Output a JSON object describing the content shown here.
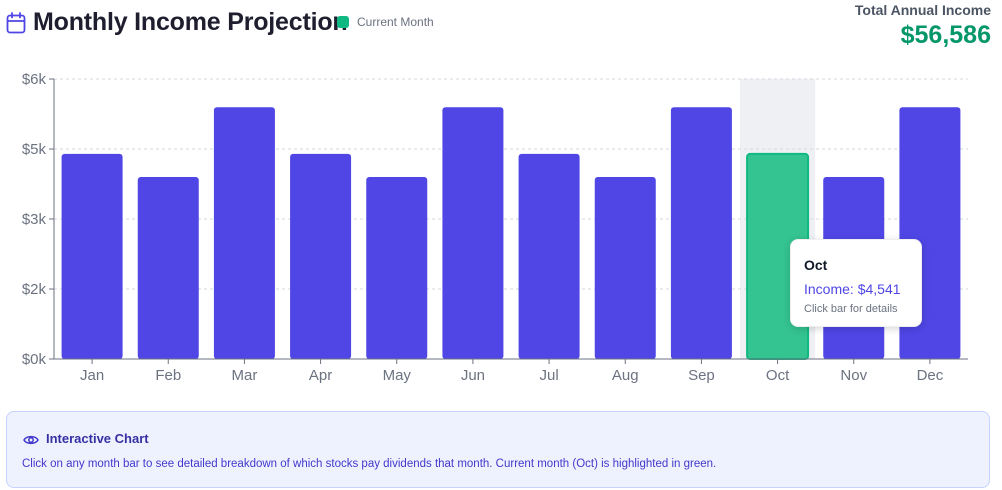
{
  "header": {
    "title": "Monthly Income Projection",
    "legend_label": "Current Month",
    "total_label": "Total Annual Income",
    "total_value": "$56,586"
  },
  "colors": {
    "bar": "#4f46e5",
    "current": "#34c491",
    "current_stroke": "#10b981",
    "total": "#059669"
  },
  "chart_data": {
    "type": "bar",
    "title": "Monthly Income Projection",
    "categories": [
      "Jan",
      "Feb",
      "Mar",
      "Apr",
      "May",
      "Jun",
      "Jul",
      "Aug",
      "Sep",
      "Oct",
      "Nov",
      "Dec"
    ],
    "values": [
      4541,
      4030,
      5575,
      4541,
      4030,
      5575,
      4541,
      4030,
      5575,
      4541,
      4030,
      5575
    ],
    "highlight": "Oct",
    "ylim": [
      0,
      6200
    ],
    "yticks": [
      0,
      1550,
      3100,
      4650,
      6200
    ],
    "ytick_labels": [
      "$0k",
      "$2k",
      "$3k",
      "$5k",
      "$6k"
    ],
    "grid": true,
    "xlabel": "",
    "ylabel": ""
  },
  "tooltip": {
    "title": "Oct",
    "text": "Income: $4,541",
    "hint": "Click bar for details"
  },
  "info": {
    "icon": "eye-icon",
    "title": "Interactive Chart",
    "text": "Click on any month bar to see detailed breakdown of which stocks pay dividends that month. Current month (Oct) is highlighted in green."
  }
}
